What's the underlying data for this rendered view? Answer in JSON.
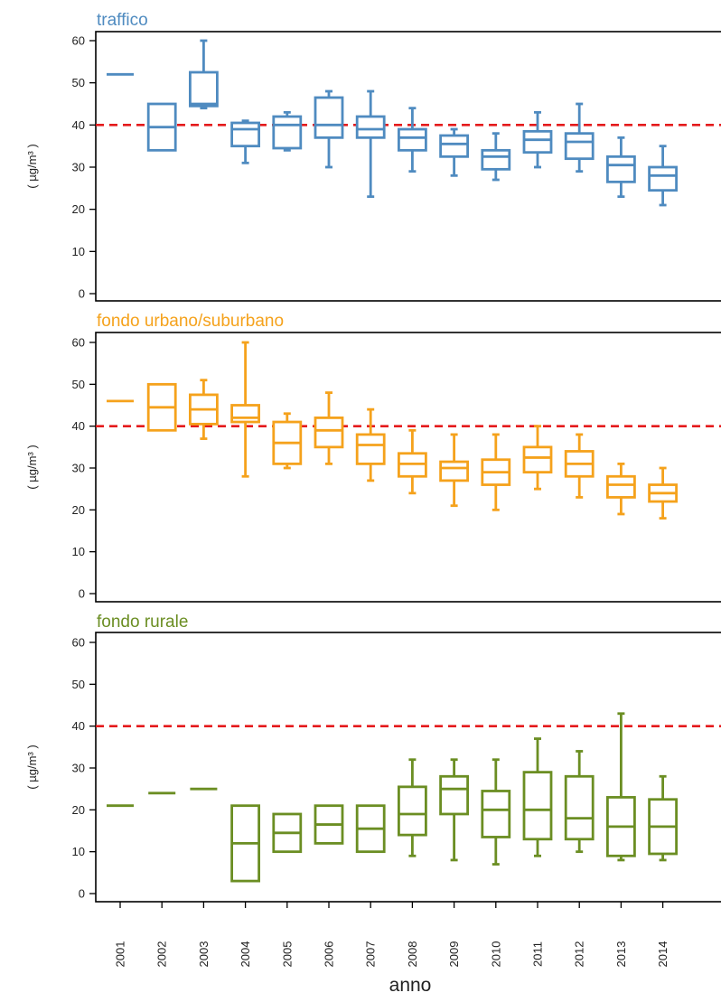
{
  "chart_data": {
    "type": "box",
    "xlabel": "anno",
    "ylabel": "( µg/m³ )",
    "ylim": [
      0,
      60
    ],
    "yticks": [
      0,
      10,
      20,
      30,
      40,
      50,
      60
    ],
    "reference_line": {
      "value": 40,
      "color": "#e41a1c",
      "style": "dashed"
    },
    "categories": [
      "2001",
      "2002",
      "2003",
      "2004",
      "2005",
      "2006",
      "2007",
      "2008",
      "2009",
      "2010",
      "2011",
      "2012",
      "2013",
      "2014"
    ],
    "panels": [
      {
        "title": "traffico",
        "color": "#4f8bc0",
        "boxes": [
          {
            "min": 52,
            "q1": 52,
            "median": 52,
            "q3": 52,
            "max": 52
          },
          {
            "min": 34,
            "q1": 34,
            "median": 39.5,
            "q3": 45,
            "max": 45
          },
          {
            "min": 44,
            "q1": 44.5,
            "median": 45,
            "q3": 52.5,
            "max": 60
          },
          {
            "min": 31,
            "q1": 35,
            "median": 39,
            "q3": 40.5,
            "max": 41
          },
          {
            "min": 34,
            "q1": 34.5,
            "median": 40,
            "q3": 42,
            "max": 43
          },
          {
            "min": 30,
            "q1": 37,
            "median": 40,
            "q3": 46.5,
            "max": 48
          },
          {
            "min": 23,
            "q1": 37,
            "median": 39,
            "q3": 42,
            "max": 48
          },
          {
            "min": 29,
            "q1": 34,
            "median": 37,
            "q3": 39,
            "max": 44
          },
          {
            "min": 28,
            "q1": 32.5,
            "median": 35.5,
            "q3": 37.5,
            "max": 39
          },
          {
            "min": 27,
            "q1": 29.5,
            "median": 32.5,
            "q3": 34,
            "max": 38
          },
          {
            "min": 30,
            "q1": 33.5,
            "median": 36.5,
            "q3": 38.5,
            "max": 43
          },
          {
            "min": 29,
            "q1": 32,
            "median": 36,
            "q3": 38,
            "max": 45
          },
          {
            "min": 23,
            "q1": 26.5,
            "median": 30.5,
            "q3": 32.5,
            "max": 37
          },
          {
            "min": 21,
            "q1": 24.5,
            "median": 28,
            "q3": 30,
            "max": 35
          }
        ]
      },
      {
        "title": "fondo urbano/suburbano",
        "color": "#f5a21c",
        "boxes": [
          {
            "min": 46,
            "q1": 46,
            "median": 46,
            "q3": 46,
            "max": 46
          },
          {
            "min": 39,
            "q1": 39,
            "median": 44.5,
            "q3": 50,
            "max": 50
          },
          {
            "min": 37,
            "q1": 40.5,
            "median": 44,
            "q3": 47.5,
            "max": 51
          },
          {
            "min": 28,
            "q1": 41,
            "median": 42,
            "q3": 45,
            "max": 60
          },
          {
            "min": 30,
            "q1": 31,
            "median": 36,
            "q3": 41,
            "max": 43
          },
          {
            "min": 31,
            "q1": 35,
            "median": 39,
            "q3": 42,
            "max": 48
          },
          {
            "min": 27,
            "q1": 31,
            "median": 35.5,
            "q3": 38,
            "max": 44
          },
          {
            "min": 24,
            "q1": 28,
            "median": 31,
            "q3": 33.5,
            "max": 39
          },
          {
            "min": 21,
            "q1": 27,
            "median": 30,
            "q3": 31.5,
            "max": 38
          },
          {
            "min": 20,
            "q1": 26,
            "median": 29,
            "q3": 32,
            "max": 38
          },
          {
            "min": 25,
            "q1": 29,
            "median": 32.5,
            "q3": 35,
            "max": 40
          },
          {
            "min": 23,
            "q1": 28,
            "median": 31,
            "q3": 34,
            "max": 38
          },
          {
            "min": 19,
            "q1": 23,
            "median": 26,
            "q3": 28,
            "max": 31
          },
          {
            "min": 18,
            "q1": 22,
            "median": 24,
            "q3": 26,
            "max": 30
          }
        ]
      },
      {
        "title": "fondo rurale",
        "color": "#6b8e23",
        "boxes": [
          {
            "min": 21,
            "q1": 21,
            "median": 21,
            "q3": 21,
            "max": 21
          },
          {
            "min": 24,
            "q1": 24,
            "median": 24,
            "q3": 24,
            "max": 24
          },
          {
            "min": 25,
            "q1": 25,
            "median": 25,
            "q3": 25,
            "max": 25
          },
          {
            "min": 3,
            "q1": 3,
            "median": 12,
            "q3": 21,
            "max": 21
          },
          {
            "min": 10,
            "q1": 10,
            "median": 14.5,
            "q3": 19,
            "max": 19
          },
          {
            "min": 12,
            "q1": 12,
            "median": 16.5,
            "q3": 21,
            "max": 21
          },
          {
            "min": 10,
            "q1": 10,
            "median": 15.5,
            "q3": 21,
            "max": 21
          },
          {
            "min": 9,
            "q1": 14,
            "median": 19,
            "q3": 25.5,
            "max": 32
          },
          {
            "min": 8,
            "q1": 19,
            "median": 25,
            "q3": 28,
            "max": 32
          },
          {
            "min": 7,
            "q1": 13.5,
            "median": 20,
            "q3": 24.5,
            "max": 32
          },
          {
            "min": 9,
            "q1": 13,
            "median": 20,
            "q3": 29,
            "max": 37
          },
          {
            "min": 10,
            "q1": 13,
            "median": 18,
            "q3": 28,
            "max": 34
          },
          {
            "min": 8,
            "q1": 9,
            "median": 16,
            "q3": 23,
            "max": 43
          },
          {
            "min": 8,
            "q1": 9.5,
            "median": 16,
            "q3": 22.5,
            "max": 28
          }
        ]
      }
    ]
  }
}
